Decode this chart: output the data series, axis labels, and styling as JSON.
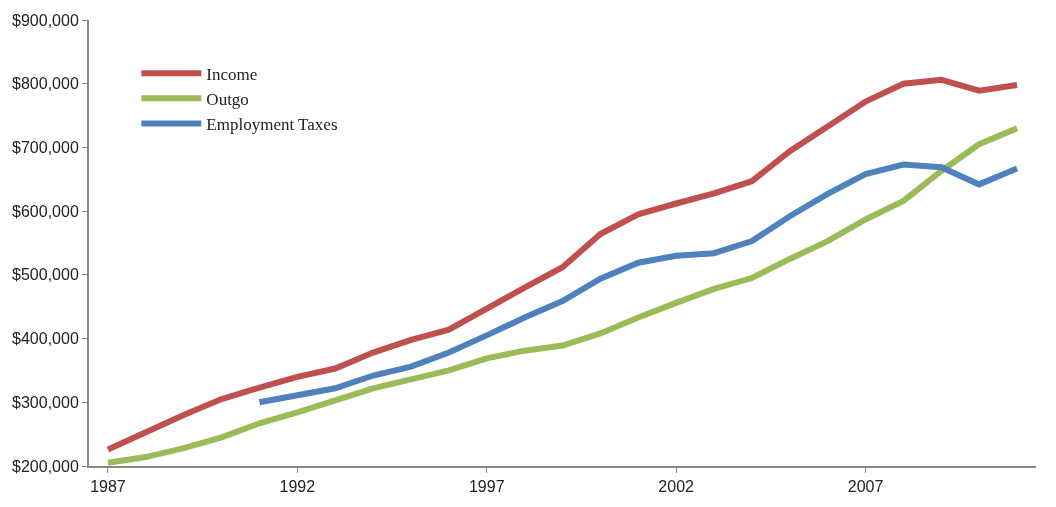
{
  "chart_data": {
    "type": "line",
    "x": [
      1987,
      1988,
      1989,
      1990,
      1991,
      1992,
      1993,
      1994,
      1995,
      1996,
      1997,
      1998,
      1999,
      2000,
      2001,
      2002,
      2003,
      2004,
      2005,
      2006,
      2007,
      2008,
      2009,
      2010,
      2011
    ],
    "series": [
      {
        "name": "Income",
        "color": "#c0504d",
        "values": [
          226000,
          253000,
          280000,
          305000,
          323000,
          340000,
          353000,
          378000,
          398000,
          414000,
          447000,
          480000,
          512000,
          564000,
          595000,
          612000,
          628000,
          647000,
          694000,
          733000,
          772000,
          800000,
          806000,
          789000,
          798000
        ]
      },
      {
        "name": "Outgo",
        "color": "#9bbb59",
        "values": [
          205000,
          214000,
          228000,
          245000,
          267000,
          284000,
          303000,
          322000,
          336000,
          350000,
          369000,
          381000,
          389000,
          408000,
          433000,
          456000,
          478000,
          495000,
          525000,
          553000,
          587000,
          616000,
          663000,
          705000,
          730000
        ]
      },
      {
        "name": "Employment Taxes",
        "color": "#4f81bd",
        "values": [
          null,
          null,
          null,
          null,
          300000,
          311000,
          322000,
          342000,
          356000,
          378000,
          405000,
          433000,
          459000,
          494000,
          519000,
          530000,
          534000,
          553000,
          592000,
          627000,
          658000,
          673000,
          669000,
          642000,
          667000
        ]
      }
    ],
    "xlim": [
      1986.5,
      2011.5
    ],
    "xticks": [
      1987,
      1992,
      1997,
      2002,
      2007
    ],
    "ylim": [
      200000,
      900000
    ],
    "yticks": [
      {
        "value": 200000,
        "label": "$200,000"
      },
      {
        "value": 300000,
        "label": "$300,000"
      },
      {
        "value": 400000,
        "label": "$400,000"
      },
      {
        "value": 500000,
        "label": "$500,000"
      },
      {
        "value": 600000,
        "label": "$600,000"
      },
      {
        "value": 700000,
        "label": "$700,000"
      },
      {
        "value": 800000,
        "label": "$800,000"
      },
      {
        "value": 900000,
        "label": "$900,000"
      }
    ],
    "legend": "top left",
    "marker": "none",
    "line_style": "solid"
  }
}
